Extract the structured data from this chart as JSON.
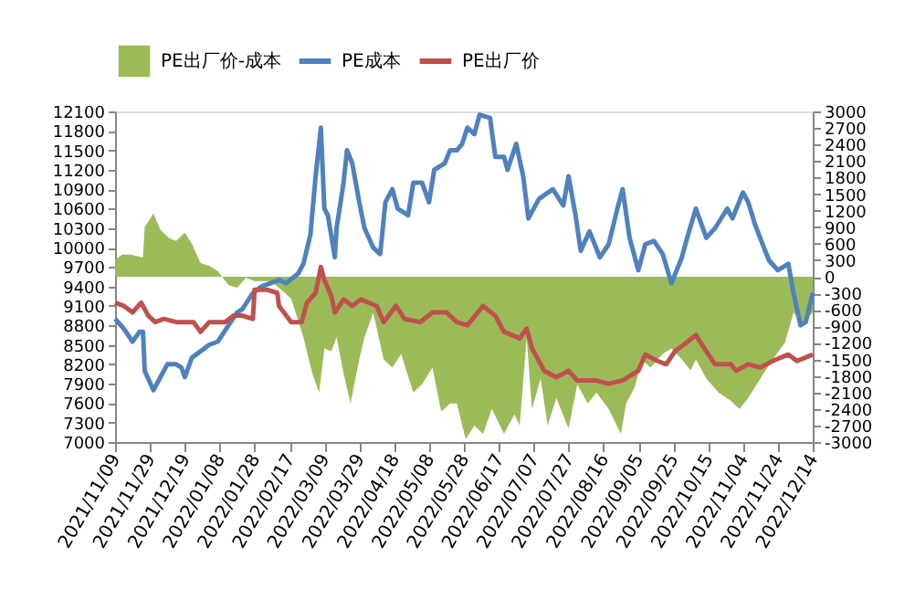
{
  "chart_data": {
    "type": "line",
    "legend": "top",
    "marker": "none",
    "line_style": "solid",
    "grid": false,
    "xlim": [
      "2021-11-09",
      "2022-12-14"
    ],
    "xticks": [
      {
        "value": "2021-11-09",
        "label": "2021/11/09"
      },
      {
        "value": "2021-11-29",
        "label": "2021/11/29"
      },
      {
        "value": "2021-12-19",
        "label": "2021/12/19"
      },
      {
        "value": "2022-01-08",
        "label": "2022/01/08"
      },
      {
        "value": "2022-01-28",
        "label": "2022/01/28"
      },
      {
        "value": "2022-02-17",
        "label": "2022/02/17"
      },
      {
        "value": "2022-03-09",
        "label": "2022/03/09"
      },
      {
        "value": "2022-03-29",
        "label": "2022/03/29"
      },
      {
        "value": "2022-04-18",
        "label": "2022/04/18"
      },
      {
        "value": "2022-05-08",
        "label": "2022/05/08"
      },
      {
        "value": "2022-05-28",
        "label": "2022/05/28"
      },
      {
        "value": "2022-06-17",
        "label": "2022/06/17"
      },
      {
        "value": "2022-07-07",
        "label": "2022/07/07"
      },
      {
        "value": "2022-07-27",
        "label": "2022/07/27"
      },
      {
        "value": "2022-08-16",
        "label": "2022/08/16"
      },
      {
        "value": "2022-09-05",
        "label": "2022/09/05"
      },
      {
        "value": "2022-09-25",
        "label": "2022/09/25"
      },
      {
        "value": "2022-10-15",
        "label": "2022/10/15"
      },
      {
        "value": "2022-11-04",
        "label": "2022/11/04"
      },
      {
        "value": "2022-11-24",
        "label": "2022/11/24"
      },
      {
        "value": "2022-12-14",
        "label": "2022/12/14"
      }
    ],
    "ylim": [
      7000,
      12100
    ],
    "yticks": [
      7000,
      7300,
      7600,
      7900,
      8200,
      8500,
      8800,
      9100,
      9400,
      9700,
      10000,
      10300,
      10600,
      10900,
      11200,
      11500,
      11800,
      12100
    ],
    "y2lim": [
      -3000,
      3000
    ],
    "y2ticks": [
      -3000,
      -2700,
      -2400,
      -2100,
      -1800,
      -1500,
      -1200,
      -900,
      -600,
      -300,
      0,
      300,
      600,
      900,
      1200,
      1500,
      1800,
      2100,
      2400,
      2700,
      3000
    ],
    "series": [
      {
        "name": "PE出厂价-成本",
        "type": "area",
        "axis": "y2",
        "color": "#9bbb59",
        "x": [
          "2021-11-09",
          "2021-11-13",
          "2021-11-18",
          "2021-11-25",
          "2021-11-26",
          "2021-12-01",
          "2021-12-05",
          "2021-12-10",
          "2021-12-14",
          "2021-12-19",
          "2021-12-23",
          "2021-12-28",
          "2022-01-02",
          "2022-01-07",
          "2022-01-13",
          "2022-01-18",
          "2022-01-23",
          "2022-01-28",
          "2022-02-06",
          "2022-02-11",
          "2022-02-18",
          "2022-02-25",
          "2022-03-02",
          "2022-03-06",
          "2022-03-09",
          "2022-03-13",
          "2022-03-16",
          "2022-03-20",
          "2022-03-24",
          "2022-03-29",
          "2022-04-01",
          "2022-04-06",
          "2022-04-12",
          "2022-04-17",
          "2022-04-22",
          "2022-04-29",
          "2022-05-04",
          "2022-05-10",
          "2022-05-15",
          "2022-05-20",
          "2022-05-24",
          "2022-05-29",
          "2022-06-03",
          "2022-06-08",
          "2022-06-13",
          "2022-06-20",
          "2022-06-26",
          "2022-06-29",
          "2022-07-03",
          "2022-07-06",
          "2022-07-11",
          "2022-07-15",
          "2022-07-20",
          "2022-07-27",
          "2022-08-01",
          "2022-08-07",
          "2022-08-12",
          "2022-08-19",
          "2022-08-26",
          "2022-08-29",
          "2022-09-03",
          "2022-09-07",
          "2022-09-12",
          "2022-09-19",
          "2022-09-24",
          "2022-09-30",
          "2022-10-05",
          "2022-10-08",
          "2022-10-14",
          "2022-10-21",
          "2022-10-28",
          "2022-11-02",
          "2022-11-07",
          "2022-11-14",
          "2022-11-21",
          "2022-11-28",
          "2022-12-03",
          "2022-12-08",
          "2022-12-14"
        ],
        "values": [
          300,
          400,
          400,
          350,
          900,
          1150,
          850,
          700,
          650,
          800,
          600,
          250,
          200,
          100,
          -150,
          -200,
          -20,
          -80,
          -80,
          -200,
          -400,
          -1100,
          -1750,
          -2100,
          -1300,
          -1350,
          -1100,
          -1750,
          -2300,
          -1500,
          -1100,
          -650,
          -1500,
          -1650,
          -1400,
          -2100,
          -1950,
          -1650,
          -2450,
          -2300,
          -2300,
          -2950,
          -2700,
          -2850,
          -2400,
          -2850,
          -2500,
          -2700,
          -1100,
          -2400,
          -1850,
          -2700,
          -2200,
          -2750,
          -1950,
          -2300,
          -2100,
          -2400,
          -2850,
          -2300,
          -2000,
          -1500,
          -1650,
          -1400,
          -1300,
          -1500,
          -1700,
          -1500,
          -1850,
          -2100,
          -2250,
          -2400,
          -2200,
          -1850,
          -1500,
          -1200,
          -650,
          -850,
          -650
        ]
      },
      {
        "name": "PE成本",
        "color": "#4f81bd",
        "x": [
          "2021-11-09",
          "2021-11-14",
          "2021-11-19",
          "2021-11-23",
          "2021-11-25",
          "2021-11-26",
          "2021-12-01",
          "2021-12-05",
          "2021-12-09",
          "2021-12-14",
          "2021-12-17",
          "2021-12-19",
          "2021-12-23",
          "2021-12-28",
          "2022-01-02",
          "2022-01-07",
          "2022-01-13",
          "2022-01-18",
          "2022-01-21",
          "2022-01-27",
          "2022-02-01",
          "2022-02-06",
          "2022-02-11",
          "2022-02-15",
          "2022-02-22",
          "2022-02-25",
          "2022-03-01",
          "2022-03-04",
          "2022-03-07",
          "2022-03-09",
          "2022-03-11",
          "2022-03-15",
          "2022-03-16",
          "2022-03-20",
          "2022-03-22",
          "2022-03-25",
          "2022-03-29",
          "2022-04-01",
          "2022-04-06",
          "2022-04-10",
          "2022-04-13",
          "2022-04-17",
          "2022-04-20",
          "2022-04-26",
          "2022-04-29",
          "2022-05-04",
          "2022-05-08",
          "2022-05-11",
          "2022-05-17",
          "2022-05-20",
          "2022-05-24",
          "2022-05-27",
          "2022-05-30",
          "2022-06-03",
          "2022-06-06",
          "2022-06-12",
          "2022-06-15",
          "2022-06-20",
          "2022-06-22",
          "2022-06-27",
          "2022-07-01",
          "2022-07-04",
          "2022-07-10",
          "2022-07-18",
          "2022-07-24",
          "2022-07-27",
          "2022-07-31",
          "2022-08-03",
          "2022-08-08",
          "2022-08-14",
          "2022-08-19",
          "2022-08-24",
          "2022-08-27",
          "2022-08-31",
          "2022-09-05",
          "2022-09-09",
          "2022-09-14",
          "2022-09-19",
          "2022-09-24",
          "2022-09-30",
          "2022-10-03",
          "2022-10-08",
          "2022-10-14",
          "2022-10-19",
          "2022-10-26",
          "2022-10-29",
          "2022-11-04",
          "2022-11-07",
          "2022-11-11",
          "2022-11-16",
          "2022-11-19",
          "2022-11-24",
          "2022-11-30",
          "2022-12-03",
          "2022-12-07",
          "2022-12-10",
          "2022-12-14"
        ],
        "values": [
          8900,
          8750,
          8550,
          8700,
          8700,
          8100,
          7800,
          8000,
          8200,
          8200,
          8150,
          8000,
          8300,
          8400,
          8500,
          8550,
          8800,
          9000,
          9050,
          9300,
          9400,
          9450,
          9500,
          9450,
          9600,
          9750,
          10200,
          11100,
          11850,
          10600,
          10500,
          9850,
          10300,
          11000,
          11500,
          11300,
          10700,
          10300,
          10000,
          9900,
          10700,
          10900,
          10600,
          10500,
          11000,
          11000,
          10700,
          11200,
          11300,
          11500,
          11500,
          11600,
          11850,
          11750,
          12050,
          12000,
          11400,
          11400,
          11200,
          11600,
          11100,
          10450,
          10750,
          10900,
          10650,
          11100,
          10500,
          9950,
          10250,
          9850,
          10050,
          10600,
          10900,
          10150,
          9650,
          10050,
          10100,
          9900,
          9450,
          9850,
          10150,
          10600,
          10150,
          10300,
          10600,
          10450,
          10850,
          10700,
          10350,
          10000,
          9800,
          9650,
          9750,
          9300,
          8800,
          8850,
          9300
        ]
      },
      {
        "name": "PE出厂价",
        "color": "#c0504d",
        "x": [
          "2021-11-09",
          "2021-11-14",
          "2021-11-19",
          "2021-11-24",
          "2021-11-28",
          "2021-12-02",
          "2021-12-07",
          "2021-12-14",
          "2021-12-24",
          "2021-12-28",
          "2022-01-02",
          "2022-01-11",
          "2022-01-16",
          "2022-01-21",
          "2022-01-27",
          "2022-01-28",
          "2022-02-04",
          "2022-02-10",
          "2022-02-11",
          "2022-02-18",
          "2022-02-24",
          "2022-02-27",
          "2022-03-04",
          "2022-03-07",
          "2022-03-09",
          "2022-03-13",
          "2022-03-15",
          "2022-03-20",
          "2022-03-25",
          "2022-03-30",
          "2022-04-08",
          "2022-04-12",
          "2022-04-19",
          "2022-04-24",
          "2022-05-03",
          "2022-05-10",
          "2022-05-18",
          "2022-05-24",
          "2022-05-30",
          "2022-06-08",
          "2022-06-15",
          "2022-06-20",
          "2022-06-29",
          "2022-07-03",
          "2022-07-06",
          "2022-07-13",
          "2022-07-20",
          "2022-07-27",
          "2022-08-01",
          "2022-08-12",
          "2022-08-19",
          "2022-08-27",
          "2022-09-05",
          "2022-09-09",
          "2022-09-16",
          "2022-09-21",
          "2022-09-26",
          "2022-10-01",
          "2022-10-08",
          "2022-10-14",
          "2022-10-19",
          "2022-10-28",
          "2022-10-31",
          "2022-11-07",
          "2022-11-14",
          "2022-11-21",
          "2022-11-30",
          "2022-12-05",
          "2022-12-14"
        ],
        "values": [
          9150,
          9100,
          9000,
          9150,
          8950,
          8850,
          8900,
          8850,
          8850,
          8700,
          8850,
          8850,
          8950,
          8950,
          8900,
          9350,
          9350,
          9300,
          9100,
          8850,
          8850,
          9150,
          9300,
          9700,
          9500,
          9250,
          9000,
          9200,
          9100,
          9200,
          9100,
          8850,
          9100,
          8900,
          8850,
          9000,
          9000,
          8850,
          8800,
          9100,
          8950,
          8700,
          8600,
          8750,
          8450,
          8100,
          8000,
          8100,
          7950,
          7950,
          7900,
          7950,
          8100,
          8350,
          8250,
          8200,
          8400,
          8500,
          8650,
          8400,
          8200,
          8200,
          8100,
          8200,
          8150,
          8250,
          8350,
          8250,
          8350
        ]
      }
    ]
  }
}
